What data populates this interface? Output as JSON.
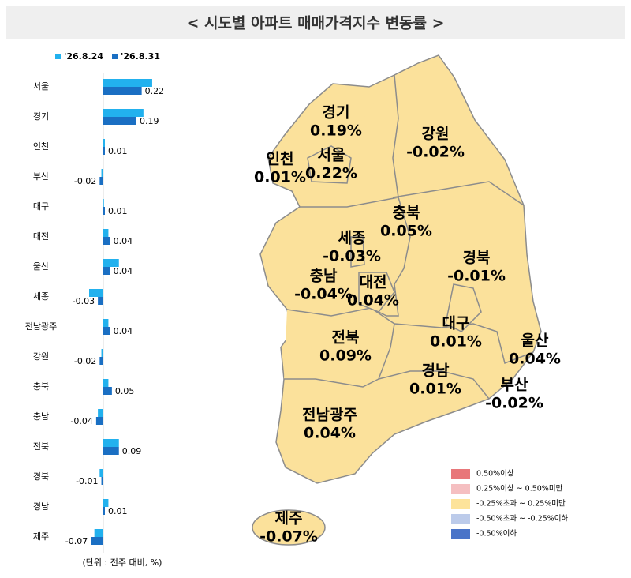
{
  "title": "< 시도별 아파트 매매가격지수 변동률 >",
  "note": "(단위 : 전주 대비, %)",
  "chart_data": [
    {
      "type": "hbar",
      "categories": [
        "서울",
        "경기",
        "인천",
        "부산",
        "대구",
        "대전",
        "울산",
        "세종",
        "전남광주",
        "강원",
        "충북",
        "충남",
        "전북",
        "경북",
        "경남",
        "제주"
      ],
      "series": [
        {
          "name": "'26.8.24",
          "color": "#22b1ee",
          "values": [
            0.28,
            0.23,
            0.01,
            -0.01,
            0.0,
            0.03,
            0.09,
            -0.08,
            0.03,
            -0.01,
            0.03,
            -0.03,
            0.09,
            -0.02,
            0.03,
            -0.05
          ]
        },
        {
          "name": "'26.8.31",
          "color": "#1a6fc3",
          "values": [
            0.22,
            0.19,
            0.01,
            -0.02,
            0.01,
            0.04,
            0.04,
            -0.03,
            0.04,
            -0.02,
            0.05,
            -0.04,
            0.09,
            -0.01,
            0.01,
            -0.07
          ],
          "value_labels": [
            "0.22",
            "0.19",
            "0.01",
            "-0.02",
            "0.01",
            "0.04",
            "0.04",
            "-0.03",
            "0.04",
            "-0.02",
            "0.05",
            "-0.04",
            "0.09",
            "-0.01",
            "0.01",
            "-0.07"
          ]
        }
      ],
      "xlim": [
        -0.08,
        0.3
      ]
    },
    {
      "type": "map",
      "regions": [
        "경기",
        "인천",
        "서울",
        "강원",
        "충북",
        "세종",
        "경북",
        "충남",
        "대전",
        "대구",
        "울산",
        "전북",
        "경남",
        "부산",
        "전남광주",
        "제주"
      ],
      "values": [
        0.19,
        0.01,
        0.22,
        -0.02,
        0.05,
        -0.03,
        -0.01,
        -0.04,
        0.04,
        0.01,
        0.04,
        0.09,
        0.01,
        -0.02,
        0.04,
        -0.07
      ],
      "value_labels": [
        "0.19%",
        "0.01%",
        "0.22%",
        "-0.02%",
        "0.05%",
        "-0.03%",
        "-0.01%",
        "-0.04%",
        "0.04%",
        "0.01%",
        "0.04%",
        "0.09%",
        "0.01%",
        "-0.02%",
        "0.04%",
        "-0.07%"
      ],
      "color": "#fbe19b",
      "legend": {
        "labels": [
          "0.50%이상",
          "0.25%이상 ~ 0.50%미만",
          "-0.25%초과 ~ 0.25%미만",
          "-0.50%초과 ~ -0.25%이하",
          "-0.50%이하"
        ],
        "colors": [
          "#e8777a",
          "#f5bfc1",
          "#fde39a",
          "#bccbea",
          "#4a74c8"
        ]
      }
    }
  ]
}
